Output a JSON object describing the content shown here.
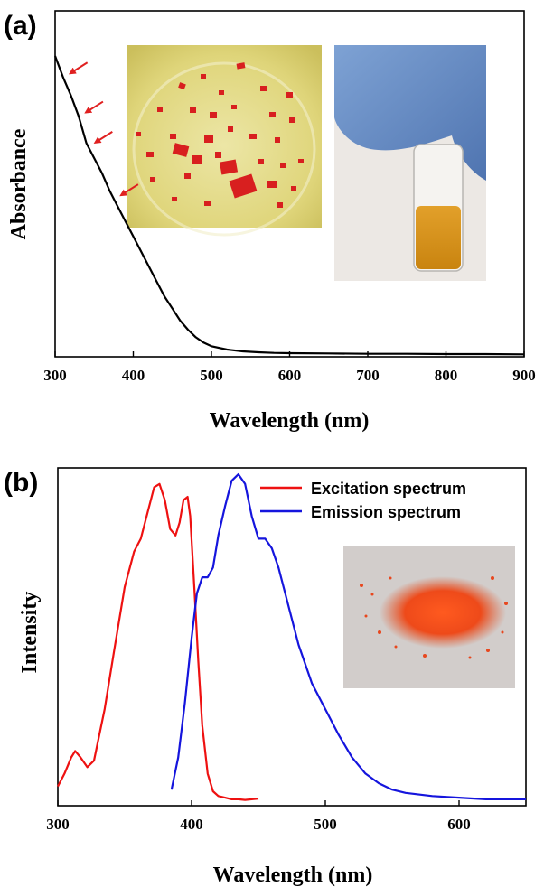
{
  "chart_data": [
    {
      "type": "line",
      "panel_label": "(a)",
      "xlabel": "Wavelength (nm)",
      "ylabel": "Absorbance",
      "xlim": [
        300,
        900
      ],
      "ylim": [
        0,
        1.15
      ],
      "x_ticks": [
        300,
        400,
        500,
        600,
        700,
        800,
        900
      ],
      "y_ticks_shown": false,
      "grid": false,
      "series": [
        {
          "color": "#000000",
          "x": [
            300,
            310,
            320,
            330,
            340,
            350,
            360,
            370,
            380,
            390,
            400,
            410,
            420,
            430,
            440,
            450,
            460,
            470,
            480,
            490,
            500,
            520,
            540,
            560,
            580,
            600,
            650,
            700,
            750,
            800,
            850,
            900
          ],
          "y": [
            1.0,
            0.93,
            0.87,
            0.8,
            0.71,
            0.66,
            0.61,
            0.55,
            0.5,
            0.45,
            0.4,
            0.35,
            0.3,
            0.25,
            0.2,
            0.16,
            0.12,
            0.09,
            0.065,
            0.047,
            0.035,
            0.024,
            0.018,
            0.015,
            0.013,
            0.012,
            0.011,
            0.01,
            0.01,
            0.009,
            0.009,
            0.008
          ]
        }
      ],
      "annotations": {
        "arrows_at_x": [
          310,
          330,
          342,
          375
        ],
        "arrow_color": "#e02020",
        "insets": [
          {
            "name": "red-crystals-photo",
            "description_colors": [
              "#e3d97a",
              "#d81f1f"
            ]
          },
          {
            "name": "vial-solution-photo",
            "description_colors": [
              "#6f93c6",
              "#d49512"
            ]
          }
        ]
      }
    },
    {
      "type": "line",
      "panel_label": "(b)",
      "xlabel": "Wavelength (nm)",
      "ylabel": "Intensity",
      "xlim": [
        300,
        650
      ],
      "ylim": [
        0,
        1.05
      ],
      "x_ticks": [
        300,
        400,
        500,
        600
      ],
      "y_ticks_shown": false,
      "grid": false,
      "legend": {
        "placement": "top-right"
      },
      "series": [
        {
          "name": "Excitation spectrum",
          "color": "#ee1111",
          "x": [
            300,
            305,
            310,
            313,
            317,
            322,
            327,
            335,
            342,
            350,
            357,
            362,
            367,
            372,
            376,
            380,
            384,
            388,
            391,
            394,
            397,
            399,
            402,
            405,
            408,
            412,
            416,
            420,
            425,
            430,
            435,
            440,
            445,
            450
          ],
          "y": [
            0.06,
            0.1,
            0.15,
            0.17,
            0.15,
            0.12,
            0.14,
            0.3,
            0.48,
            0.68,
            0.79,
            0.83,
            0.91,
            0.99,
            1.0,
            0.95,
            0.86,
            0.84,
            0.88,
            0.95,
            0.96,
            0.9,
            0.68,
            0.45,
            0.25,
            0.1,
            0.045,
            0.03,
            0.025,
            0.02,
            0.02,
            0.018,
            0.02,
            0.022
          ]
        },
        {
          "name": "Emission spectrum",
          "color": "#1515dd",
          "x": [
            385,
            390,
            395,
            400,
            404,
            408,
            412,
            416,
            420,
            425,
            430,
            435,
            440,
            445,
            450,
            455,
            460,
            465,
            470,
            480,
            490,
            500,
            510,
            520,
            530,
            540,
            550,
            560,
            580,
            600,
            620,
            650
          ],
          "y": [
            0.05,
            0.15,
            0.32,
            0.52,
            0.66,
            0.71,
            0.71,
            0.74,
            0.84,
            0.93,
            1.01,
            1.03,
            1.0,
            0.9,
            0.83,
            0.83,
            0.8,
            0.74,
            0.66,
            0.5,
            0.38,
            0.3,
            0.22,
            0.15,
            0.1,
            0.07,
            0.05,
            0.04,
            0.03,
            0.025,
            0.02,
            0.02
          ]
        }
      ],
      "annotations": {
        "insets": [
          {
            "name": "orange-powder-photo",
            "description_colors": [
              "#d2cdcb",
              "#e8471e"
            ]
          }
        ]
      }
    }
  ]
}
